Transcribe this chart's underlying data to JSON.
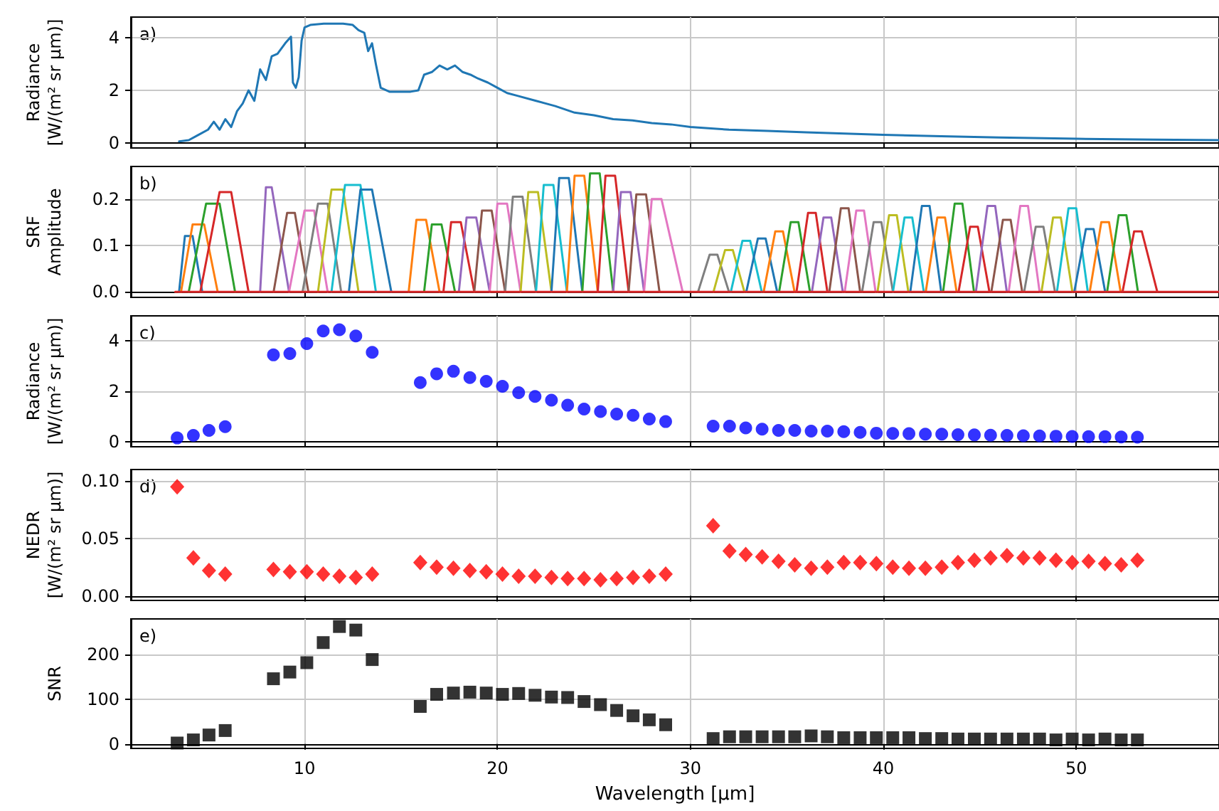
{
  "chart_data": [
    {
      "type": "line",
      "ylabel": "Radiance\n[W/(m² sr µm)]",
      "annotations": [
        "a)"
      ],
      "xlim": [
        1,
        57.4
      ],
      "xticks": [
        10,
        20,
        30,
        40,
        50
      ],
      "ylim": [
        -0.2,
        4.8
      ],
      "yticks": [
        0,
        2,
        4
      ],
      "grid": true,
      "tick_labels": "y",
      "x": [
        3.5,
        4.0,
        4.5,
        5.0,
        5.3,
        5.6,
        5.9,
        6.2,
        6.5,
        6.8,
        7.1,
        7.4,
        7.7,
        8.0,
        8.3,
        8.6,
        9.0,
        9.3,
        9.4,
        9.55,
        9.7,
        9.85,
        10.0,
        10.3,
        11.0,
        11.5,
        12.0,
        12.5,
        12.8,
        13.1,
        13.3,
        13.5,
        13.7,
        13.95,
        14.4,
        15.0,
        15.5,
        15.9,
        16.2,
        16.6,
        17.0,
        17.4,
        17.8,
        18.2,
        18.6,
        19.0,
        19.5,
        20.0,
        20.5,
        21.0,
        22.0,
        23.0,
        24.0,
        25.0,
        26.0,
        27.0,
        28.0,
        29.0,
        30.0,
        32.0,
        34.0,
        36.0,
        38.0,
        40.0,
        43.0,
        46.0,
        50.0,
        54.0,
        57.4
      ],
      "series": [
        {
          "color": "#1f77b4",
          "values": [
            0.05,
            0.1,
            0.3,
            0.5,
            0.8,
            0.5,
            0.9,
            0.6,
            1.2,
            1.5,
            2.0,
            1.6,
            2.8,
            2.4,
            3.3,
            3.4,
            3.8,
            4.05,
            2.3,
            2.1,
            2.5,
            3.9,
            4.4,
            4.5,
            4.55,
            4.55,
            4.55,
            4.5,
            4.3,
            4.2,
            3.5,
            3.8,
            3.0,
            2.1,
            1.95,
            1.95,
            1.95,
            2.0,
            2.6,
            2.7,
            2.95,
            2.8,
            2.95,
            2.7,
            2.6,
            2.45,
            2.3,
            2.1,
            1.9,
            1.8,
            1.6,
            1.4,
            1.15,
            1.05,
            0.9,
            0.85,
            0.75,
            0.7,
            0.6,
            0.5,
            0.45,
            0.4,
            0.35,
            0.3,
            0.25,
            0.2,
            0.15,
            0.12,
            0.1
          ]
        }
      ]
    },
    {
      "type": "line",
      "ylabel": "SRF\nAmplitude",
      "annotations": [
        "b)"
      ],
      "xlim": [
        1,
        57.4
      ],
      "xticks": [
        10,
        20,
        30,
        40,
        50
      ],
      "ylim": [
        -0.012,
        0.27
      ],
      "yticks": [
        {
          "value": 0,
          "label": "0.0"
        },
        {
          "value": 0.1,
          "label": "0.1"
        },
        {
          "value": 0.2,
          "label": "0.2"
        }
      ],
      "grid": true,
      "tick_labels": "y",
      "series": [
        {
          "color": "#1f77b4",
          "x": [
            3.5,
            3.8,
            4.2,
            4.7
          ],
          "values": [
            0,
            0.12,
            0.12,
            0
          ]
        },
        {
          "color": "#ff7f0e",
          "x": [
            3.6,
            4.2,
            4.8,
            5.5
          ],
          "values": [
            0,
            0.145,
            0.145,
            0
          ]
        },
        {
          "color": "#2ca02c",
          "x": [
            4.0,
            4.9,
            5.6,
            6.4
          ],
          "values": [
            0,
            0.19,
            0.19,
            0
          ]
        },
        {
          "color": "#d62728",
          "x": [
            4.6,
            5.6,
            6.2,
            7.1
          ],
          "values": [
            0,
            0.215,
            0.215,
            0
          ]
        },
        {
          "color": "#9467bd",
          "x": [
            7.7,
            8.0,
            8.3,
            9.2
          ],
          "values": [
            0,
            0.225,
            0.225,
            0
          ]
        },
        {
          "color": "#8c564b",
          "x": [
            8.4,
            9.1,
            9.5,
            10.2
          ],
          "values": [
            0,
            0.17,
            0.17,
            0
          ]
        },
        {
          "color": "#e377c2",
          "x": [
            9.2,
            10.0,
            10.5,
            11.2
          ],
          "values": [
            0,
            0.175,
            0.175,
            0
          ]
        },
        {
          "color": "#7f7f7f",
          "x": [
            9.9,
            10.7,
            11.2,
            11.9
          ],
          "values": [
            0,
            0.19,
            0.19,
            0
          ]
        },
        {
          "color": "#bcbd22",
          "x": [
            10.7,
            11.4,
            12.0,
            12.8
          ],
          "values": [
            0,
            0.22,
            0.22,
            0
          ]
        },
        {
          "color": "#17becf",
          "x": [
            11.4,
            12.1,
            12.9,
            13.7
          ],
          "values": [
            0,
            0.23,
            0.23,
            0
          ]
        },
        {
          "color": "#1f77b4",
          "x": [
            12.3,
            12.9,
            13.5,
            14.5
          ],
          "values": [
            0,
            0.22,
            0.22,
            0
          ]
        },
        {
          "color": "#ff7f0e",
          "x": [
            15.4,
            15.8,
            16.3,
            17.0
          ],
          "values": [
            0,
            0.155,
            0.155,
            0
          ]
        },
        {
          "color": "#2ca02c",
          "x": [
            16.2,
            16.6,
            17.1,
            17.8
          ],
          "values": [
            0,
            0.145,
            0.145,
            0
          ]
        },
        {
          "color": "#d62728",
          "x": [
            17.2,
            17.6,
            18.1,
            18.8
          ],
          "values": [
            0,
            0.15,
            0.15,
            0
          ]
        },
        {
          "color": "#9467bd",
          "x": [
            18.0,
            18.4,
            18.9,
            19.6
          ],
          "values": [
            0,
            0.16,
            0.16,
            0
          ]
        },
        {
          "color": "#8c564b",
          "x": [
            18.8,
            19.2,
            19.7,
            20.4
          ],
          "values": [
            0,
            0.175,
            0.175,
            0
          ]
        },
        {
          "color": "#e377c2",
          "x": [
            19.6,
            20.0,
            20.5,
            21.2
          ],
          "values": [
            0,
            0.19,
            0.19,
            0
          ]
        },
        {
          "color": "#7f7f7f",
          "x": [
            20.4,
            20.8,
            21.3,
            22.0
          ],
          "values": [
            0,
            0.205,
            0.205,
            0
          ]
        },
        {
          "color": "#bcbd22",
          "x": [
            21.2,
            21.6,
            22.1,
            22.8
          ],
          "values": [
            0,
            0.215,
            0.215,
            0
          ]
        },
        {
          "color": "#17becf",
          "x": [
            22.0,
            22.4,
            22.9,
            23.6
          ],
          "values": [
            0,
            0.23,
            0.23,
            0
          ]
        },
        {
          "color": "#1f77b4",
          "x": [
            22.8,
            23.2,
            23.7,
            24.4
          ],
          "values": [
            0,
            0.245,
            0.245,
            0
          ]
        },
        {
          "color": "#ff7f0e",
          "x": [
            23.6,
            24.0,
            24.5,
            25.2
          ],
          "values": [
            0,
            0.25,
            0.25,
            0
          ]
        },
        {
          "color": "#2ca02c",
          "x": [
            24.4,
            24.8,
            25.3,
            26.0
          ],
          "values": [
            0,
            0.255,
            0.255,
            0
          ]
        },
        {
          "color": "#d62728",
          "x": [
            25.2,
            25.6,
            26.1,
            26.8
          ],
          "values": [
            0,
            0.25,
            0.25,
            0
          ]
        },
        {
          "color": "#9467bd",
          "x": [
            26.0,
            26.4,
            26.9,
            27.6
          ],
          "values": [
            0,
            0.215,
            0.215,
            0
          ]
        },
        {
          "color": "#8c564b",
          "x": [
            26.8,
            27.2,
            27.7,
            28.4
          ],
          "values": [
            0,
            0.21,
            0.21,
            0
          ]
        },
        {
          "color": "#e377c2",
          "x": [
            27.6,
            28.0,
            28.5,
            29.6
          ],
          "values": [
            0,
            0.2,
            0.2,
            0
          ]
        },
        {
          "color": "#7f7f7f",
          "x": [
            30.4,
            31.0,
            31.4,
            32.0
          ],
          "values": [
            0,
            0.08,
            0.08,
            0
          ]
        },
        {
          "color": "#bcbd22",
          "x": [
            31.2,
            31.8,
            32.2,
            32.8
          ],
          "values": [
            0,
            0.09,
            0.09,
            0
          ]
        },
        {
          "color": "#17becf",
          "x": [
            32.1,
            32.7,
            33.1,
            33.7
          ],
          "values": [
            0,
            0.11,
            0.11,
            0
          ]
        },
        {
          "color": "#1f77b4",
          "x": [
            32.9,
            33.5,
            33.9,
            34.5
          ],
          "values": [
            0,
            0.115,
            0.115,
            0
          ]
        },
        {
          "color": "#ff7f0e",
          "x": [
            33.8,
            34.4,
            34.8,
            35.4
          ],
          "values": [
            0,
            0.13,
            0.13,
            0
          ]
        },
        {
          "color": "#2ca02c",
          "x": [
            34.6,
            35.2,
            35.6,
            36.2
          ],
          "values": [
            0,
            0.15,
            0.15,
            0
          ]
        },
        {
          "color": "#d62728",
          "x": [
            35.5,
            36.1,
            36.5,
            37.1
          ],
          "values": [
            0,
            0.17,
            0.17,
            0
          ]
        },
        {
          "color": "#9467bd",
          "x": [
            36.3,
            36.9,
            37.3,
            37.9
          ],
          "values": [
            0,
            0.16,
            0.16,
            0
          ]
        },
        {
          "color": "#8c564b",
          "x": [
            37.2,
            37.8,
            38.2,
            38.8
          ],
          "values": [
            0,
            0.18,
            0.18,
            0
          ]
        },
        {
          "color": "#e377c2",
          "x": [
            38.0,
            38.6,
            39.0,
            39.6
          ],
          "values": [
            0,
            0.175,
            0.175,
            0
          ]
        },
        {
          "color": "#7f7f7f",
          "x": [
            38.9,
            39.5,
            39.9,
            40.5
          ],
          "values": [
            0,
            0.15,
            0.15,
            0
          ]
        },
        {
          "color": "#bcbd22",
          "x": [
            39.7,
            40.3,
            40.7,
            41.3
          ],
          "values": [
            0,
            0.165,
            0.165,
            0
          ]
        },
        {
          "color": "#17becf",
          "x": [
            40.5,
            41.1,
            41.5,
            42.1
          ],
          "values": [
            0,
            0.16,
            0.16,
            0
          ]
        },
        {
          "color": "#1f77b4",
          "x": [
            41.4,
            42.0,
            42.4,
            43.0
          ],
          "values": [
            0,
            0.185,
            0.185,
            0
          ]
        },
        {
          "color": "#ff7f0e",
          "x": [
            42.2,
            42.8,
            43.2,
            43.8
          ],
          "values": [
            0,
            0.16,
            0.16,
            0
          ]
        },
        {
          "color": "#2ca02c",
          "x": [
            43.1,
            43.7,
            44.1,
            44.7
          ],
          "values": [
            0,
            0.19,
            0.19,
            0
          ]
        },
        {
          "color": "#d62728",
          "x": [
            43.9,
            44.5,
            44.9,
            45.5
          ],
          "values": [
            0,
            0.14,
            0.14,
            0
          ]
        },
        {
          "color": "#9467bd",
          "x": [
            44.8,
            45.4,
            45.8,
            46.4
          ],
          "values": [
            0,
            0.185,
            0.185,
            0
          ]
        },
        {
          "color": "#8c564b",
          "x": [
            45.6,
            46.2,
            46.6,
            47.2
          ],
          "values": [
            0,
            0.155,
            0.155,
            0
          ]
        },
        {
          "color": "#e377c2",
          "x": [
            46.5,
            47.1,
            47.5,
            48.1
          ],
          "values": [
            0,
            0.185,
            0.185,
            0
          ]
        },
        {
          "color": "#7f7f7f",
          "x": [
            47.3,
            47.9,
            48.3,
            48.9
          ],
          "values": [
            0,
            0.14,
            0.14,
            0
          ]
        },
        {
          "color": "#bcbd22",
          "x": [
            48.2,
            48.8,
            49.2,
            49.8
          ],
          "values": [
            0,
            0.16,
            0.16,
            0
          ]
        },
        {
          "color": "#17becf",
          "x": [
            49.0,
            49.6,
            50.0,
            50.6
          ],
          "values": [
            0,
            0.18,
            0.18,
            0
          ]
        },
        {
          "color": "#1f77b4",
          "x": [
            49.9,
            50.5,
            50.9,
            51.5
          ],
          "values": [
            0,
            0.135,
            0.135,
            0
          ]
        },
        {
          "color": "#ff7f0e",
          "x": [
            50.7,
            51.3,
            51.7,
            52.3
          ],
          "values": [
            0,
            0.15,
            0.15,
            0
          ]
        },
        {
          "color": "#2ca02c",
          "x": [
            51.6,
            52.2,
            52.6,
            53.2
          ],
          "values": [
            0,
            0.165,
            0.165,
            0
          ]
        },
        {
          "color": "#d62728",
          "x": [
            52.4,
            53.0,
            53.4,
            54.2
          ],
          "values": [
            0,
            0.13,
            0.13,
            0
          ]
        },
        {
          "color": "#d62728",
          "x": [
            3.3,
            57.4
          ],
          "values": [
            0,
            0
          ]
        }
      ]
    },
    {
      "type": "scatter",
      "marker": "circle",
      "ylabel": "Radiance\n[W/(m² sr µm)]",
      "annotations": [
        "c)"
      ],
      "xlim": [
        1,
        57.4
      ],
      "xticks": [
        10,
        20,
        30,
        40,
        50
      ],
      "ylim": [
        -0.2,
        5.0
      ],
      "yticks": [
        0,
        2,
        4
      ],
      "grid": true,
      "tick_labels": "y",
      "x": [
        3.4,
        4.24,
        5.05,
        5.89,
        8.39,
        9.24,
        10.12,
        10.97,
        11.81,
        12.66,
        13.51,
        16.0,
        16.85,
        17.72,
        18.57,
        19.42,
        20.26,
        21.1,
        21.95,
        22.8,
        23.64,
        24.49,
        25.34,
        26.18,
        27.03,
        27.87,
        28.72,
        31.18,
        32.03,
        32.87,
        33.72,
        34.57,
        35.41,
        36.26,
        37.1,
        37.95,
        38.8,
        39.64,
        40.49,
        41.33,
        42.18,
        43.03,
        43.87,
        44.72,
        45.56,
        46.41,
        47.26,
        48.1,
        48.95,
        49.79,
        50.64,
        51.49,
        52.33,
        53.17
      ],
      "series": [
        {
          "color": "#0000ff",
          "values": [
            0.15,
            0.25,
            0.45,
            0.6,
            3.45,
            3.5,
            3.9,
            4.4,
            4.45,
            4.2,
            3.55,
            2.35,
            2.7,
            2.8,
            2.55,
            2.4,
            2.2,
            1.95,
            1.8,
            1.65,
            1.45,
            1.3,
            1.2,
            1.1,
            1.05,
            0.9,
            0.8,
            0.62,
            0.62,
            0.55,
            0.5,
            0.45,
            0.45,
            0.42,
            0.42,
            0.4,
            0.37,
            0.34,
            0.33,
            0.32,
            0.3,
            0.3,
            0.28,
            0.27,
            0.26,
            0.25,
            0.24,
            0.23,
            0.22,
            0.21,
            0.2,
            0.2,
            0.19,
            0.18
          ]
        }
      ]
    },
    {
      "type": "scatter",
      "marker": "diamond",
      "ylabel": "NEDR\n[W/(m² sr µm)]",
      "annotations": [
        "d)"
      ],
      "xlim": [
        1,
        57.4
      ],
      "xticks": [
        10,
        20,
        30,
        40,
        50
      ],
      "ylim": [
        -0.004,
        0.11
      ],
      "yticks": [
        {
          "value": 0,
          "label": "0.00"
        },
        {
          "value": 0.05,
          "label": "0.05"
        },
        {
          "value": 0.1,
          "label": "0.10"
        }
      ],
      "grid": true,
      "tick_labels": "y",
      "x": [
        3.4,
        4.24,
        5.05,
        5.89,
        8.39,
        9.24,
        10.12,
        10.97,
        11.81,
        12.66,
        13.51,
        16.0,
        16.85,
        17.72,
        18.57,
        19.42,
        20.26,
        21.1,
        21.95,
        22.8,
        23.64,
        24.49,
        25.34,
        26.18,
        27.03,
        27.87,
        28.72,
        31.18,
        32.03,
        32.87,
        33.72,
        34.57,
        35.41,
        36.26,
        37.1,
        37.95,
        38.8,
        39.64,
        40.49,
        41.33,
        42.18,
        43.03,
        43.87,
        44.72,
        45.56,
        46.41,
        47.26,
        48.1,
        48.95,
        49.79,
        50.64,
        51.49,
        52.33,
        53.17
      ],
      "series": [
        {
          "color": "#ff0000",
          "values": [
            0.095,
            0.033,
            0.022,
            0.019,
            0.023,
            0.021,
            0.021,
            0.019,
            0.017,
            0.016,
            0.019,
            0.029,
            0.025,
            0.024,
            0.022,
            0.021,
            0.019,
            0.017,
            0.017,
            0.016,
            0.015,
            0.015,
            0.014,
            0.015,
            0.016,
            0.017,
            0.019,
            0.061,
            0.039,
            0.036,
            0.034,
            0.03,
            0.027,
            0.024,
            0.025,
            0.029,
            0.029,
            0.028,
            0.025,
            0.024,
            0.024,
            0.025,
            0.029,
            0.031,
            0.033,
            0.035,
            0.033,
            0.033,
            0.031,
            0.029,
            0.03,
            0.028,
            0.027,
            0.031
          ]
        }
      ]
    },
    {
      "type": "scatter",
      "marker": "square",
      "ylabel": "SNR",
      "xlabel": "Wavelength [µm]",
      "annotations": [
        "e)"
      ],
      "xlim": [
        1,
        57.4
      ],
      "xticks": [
        10,
        20,
        30,
        40,
        50
      ],
      "ylim": [
        -10,
        280
      ],
      "yticks": [
        0,
        100,
        200
      ],
      "grid": true,
      "x": [
        3.4,
        4.24,
        5.05,
        5.89,
        8.39,
        9.24,
        10.12,
        10.97,
        11.81,
        12.66,
        13.51,
        16.0,
        16.85,
        17.72,
        18.57,
        19.42,
        20.26,
        21.1,
        21.95,
        22.8,
        23.64,
        24.49,
        25.34,
        26.18,
        27.03,
        27.87,
        28.72,
        31.18,
        32.03,
        32.87,
        33.72,
        34.57,
        35.41,
        36.26,
        37.1,
        37.95,
        38.8,
        39.64,
        40.49,
        41.33,
        42.18,
        43.03,
        43.87,
        44.72,
        45.56,
        46.41,
        47.26,
        48.1,
        48.95,
        49.79,
        50.64,
        51.49,
        52.33,
        53.17
      ],
      "series": [
        {
          "color": "#000000",
          "values": [
            2,
            9,
            20,
            30,
            146,
            161,
            182,
            227,
            263,
            255,
            189,
            84,
            111,
            114,
            116,
            114,
            111,
            113,
            109,
            105,
            104,
            95,
            88,
            75,
            63,
            54,
            43,
            12,
            16,
            16,
            16,
            16,
            16,
            18,
            16,
            14,
            14,
            14,
            14,
            14,
            12,
            12,
            11,
            11,
            11,
            11,
            11,
            11,
            9,
            11,
            9,
            11,
            9,
            9
          ]
        }
      ]
    }
  ]
}
